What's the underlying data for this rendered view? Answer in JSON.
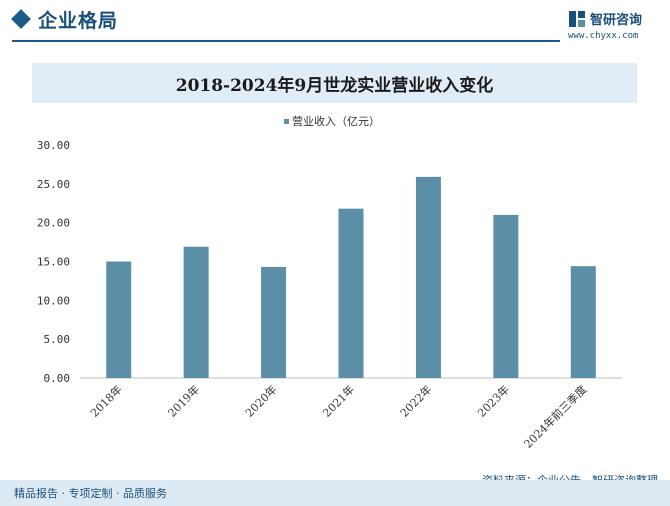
{
  "header": {
    "section_title": "企业格局",
    "logo_name": "智研咨询",
    "logo_url": "www.chyxx.com"
  },
  "chart_data": {
    "type": "bar",
    "title": "2018-2024年9月世龙实业营业收入变化",
    "categories": [
      "2018年",
      "2019年",
      "2020年",
      "2021年",
      "2022年",
      "2023年",
      "2024年前三季度"
    ],
    "series": [
      {
        "name": "营业收入（亿元）",
        "values": [
          15.0,
          16.9,
          14.3,
          21.8,
          25.9,
          21.0,
          14.4
        ]
      }
    ],
    "yticks": [
      "0.00",
      "5.00",
      "10.00",
      "15.00",
      "20.00",
      "25.00",
      "30.00"
    ],
    "ylim": [
      0,
      30
    ],
    "grid": false,
    "legend_position": "top-center",
    "bar_color": "#5b8fa8"
  },
  "footer": {
    "left": "精品报告 · 专项定制 · 品质服务",
    "right": "资料来源：企业公告、智研咨询整理"
  }
}
